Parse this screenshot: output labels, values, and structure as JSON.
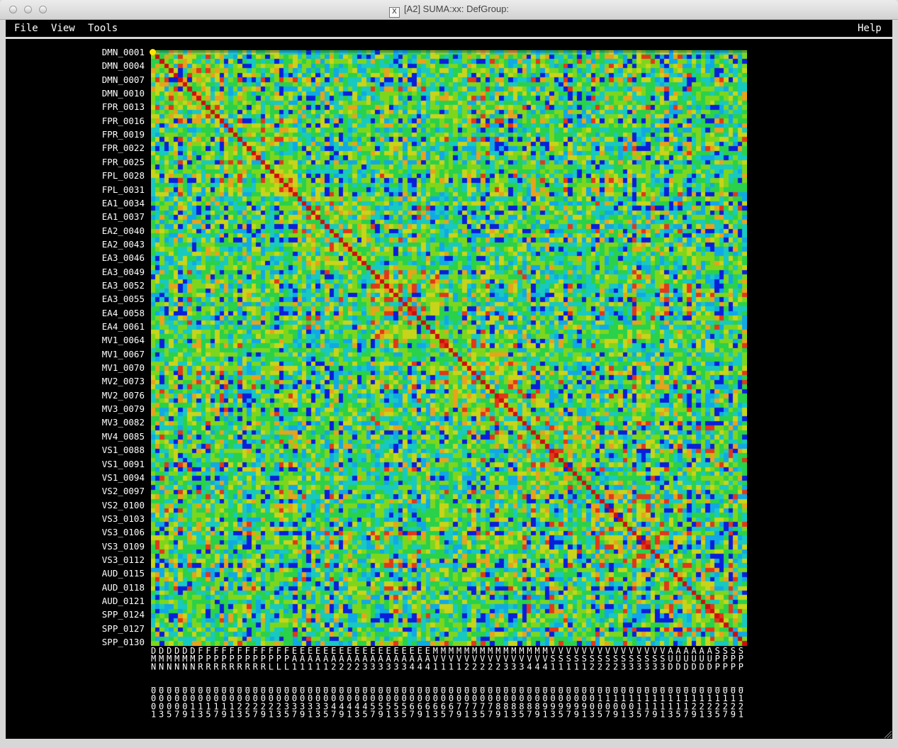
{
  "window": {
    "title": "[A2] SUMA:xx: DefGroup:"
  },
  "menu": {
    "file": "File",
    "view": "View",
    "tools": "Tools",
    "help": "Help"
  },
  "matrix": {
    "size": 130,
    "row_labels": [
      "DMN_0001",
      "DMN_0004",
      "DMN_0007",
      "DMN_0010",
      "FPR_0013",
      "FPR_0016",
      "FPR_0019",
      "FPR_0022",
      "FPR_0025",
      "FPL_0028",
      "FPL_0031",
      "EA1_0034",
      "EA1_0037",
      "EA2_0040",
      "EA2_0043",
      "EA3_0046",
      "EA3_0049",
      "EA3_0052",
      "EA3_0055",
      "EA4_0058",
      "EA4_0061",
      "MV1_0064",
      "MV1_0067",
      "MV1_0070",
      "MV2_0073",
      "MV2_0076",
      "MV3_0079",
      "MV3_0082",
      "MV4_0085",
      "VS1_0088",
      "VS1_0091",
      "VS1_0094",
      "VS2_0097",
      "VS2_0100",
      "VS3_0103",
      "VS3_0106",
      "VS3_0109",
      "VS3_0112",
      "AUD_0115",
      "AUD_0118",
      "AUD_0121",
      "SPP_0124",
      "SPP_0127",
      "SPP_0130"
    ],
    "col_label_lines": [
      "DDDDDDFFFFFFFFFFFFEEEEEEEEEEEEEEEEEEMMMMMMMMMMMMMMMVVVVVVVVVVVVVVVAAAAAASSSS",
      "MMMMMMPPPPPPPPPPPPAAAAAAAAAAAAAAAAAAVVVVVVVVVVVVVVVSSSSSSSSSSSSSSSUUUUUUPPPP",
      "NNNNNNRRRRRRRRRLLL111112222333333444111122222333444111112222333333DDDDDDPPPP",
      "",
      "____________________________________________________________________________",
      "0000000000000000000000000000000000000000000000000000000000000000000000000000",
      "0000000000000000000000000000000000000000000000000000000001111111111111111111",
      "0000011111122222233333344444555556666667777788888899999900000011111112222222",
      "1357913579135791357913579135791357913579135791357913579135791357913579135791"
    ],
    "colormap": [
      "#0a1fd9",
      "#10a9e6",
      "#18c9c0",
      "#2ad14a",
      "#7ed61c",
      "#c8d41a",
      "#e8a21c",
      "#e0381a",
      "#c80e0e"
    ],
    "diagonal_color": "#cc0f0f",
    "highlight_color": "#ffe600"
  }
}
